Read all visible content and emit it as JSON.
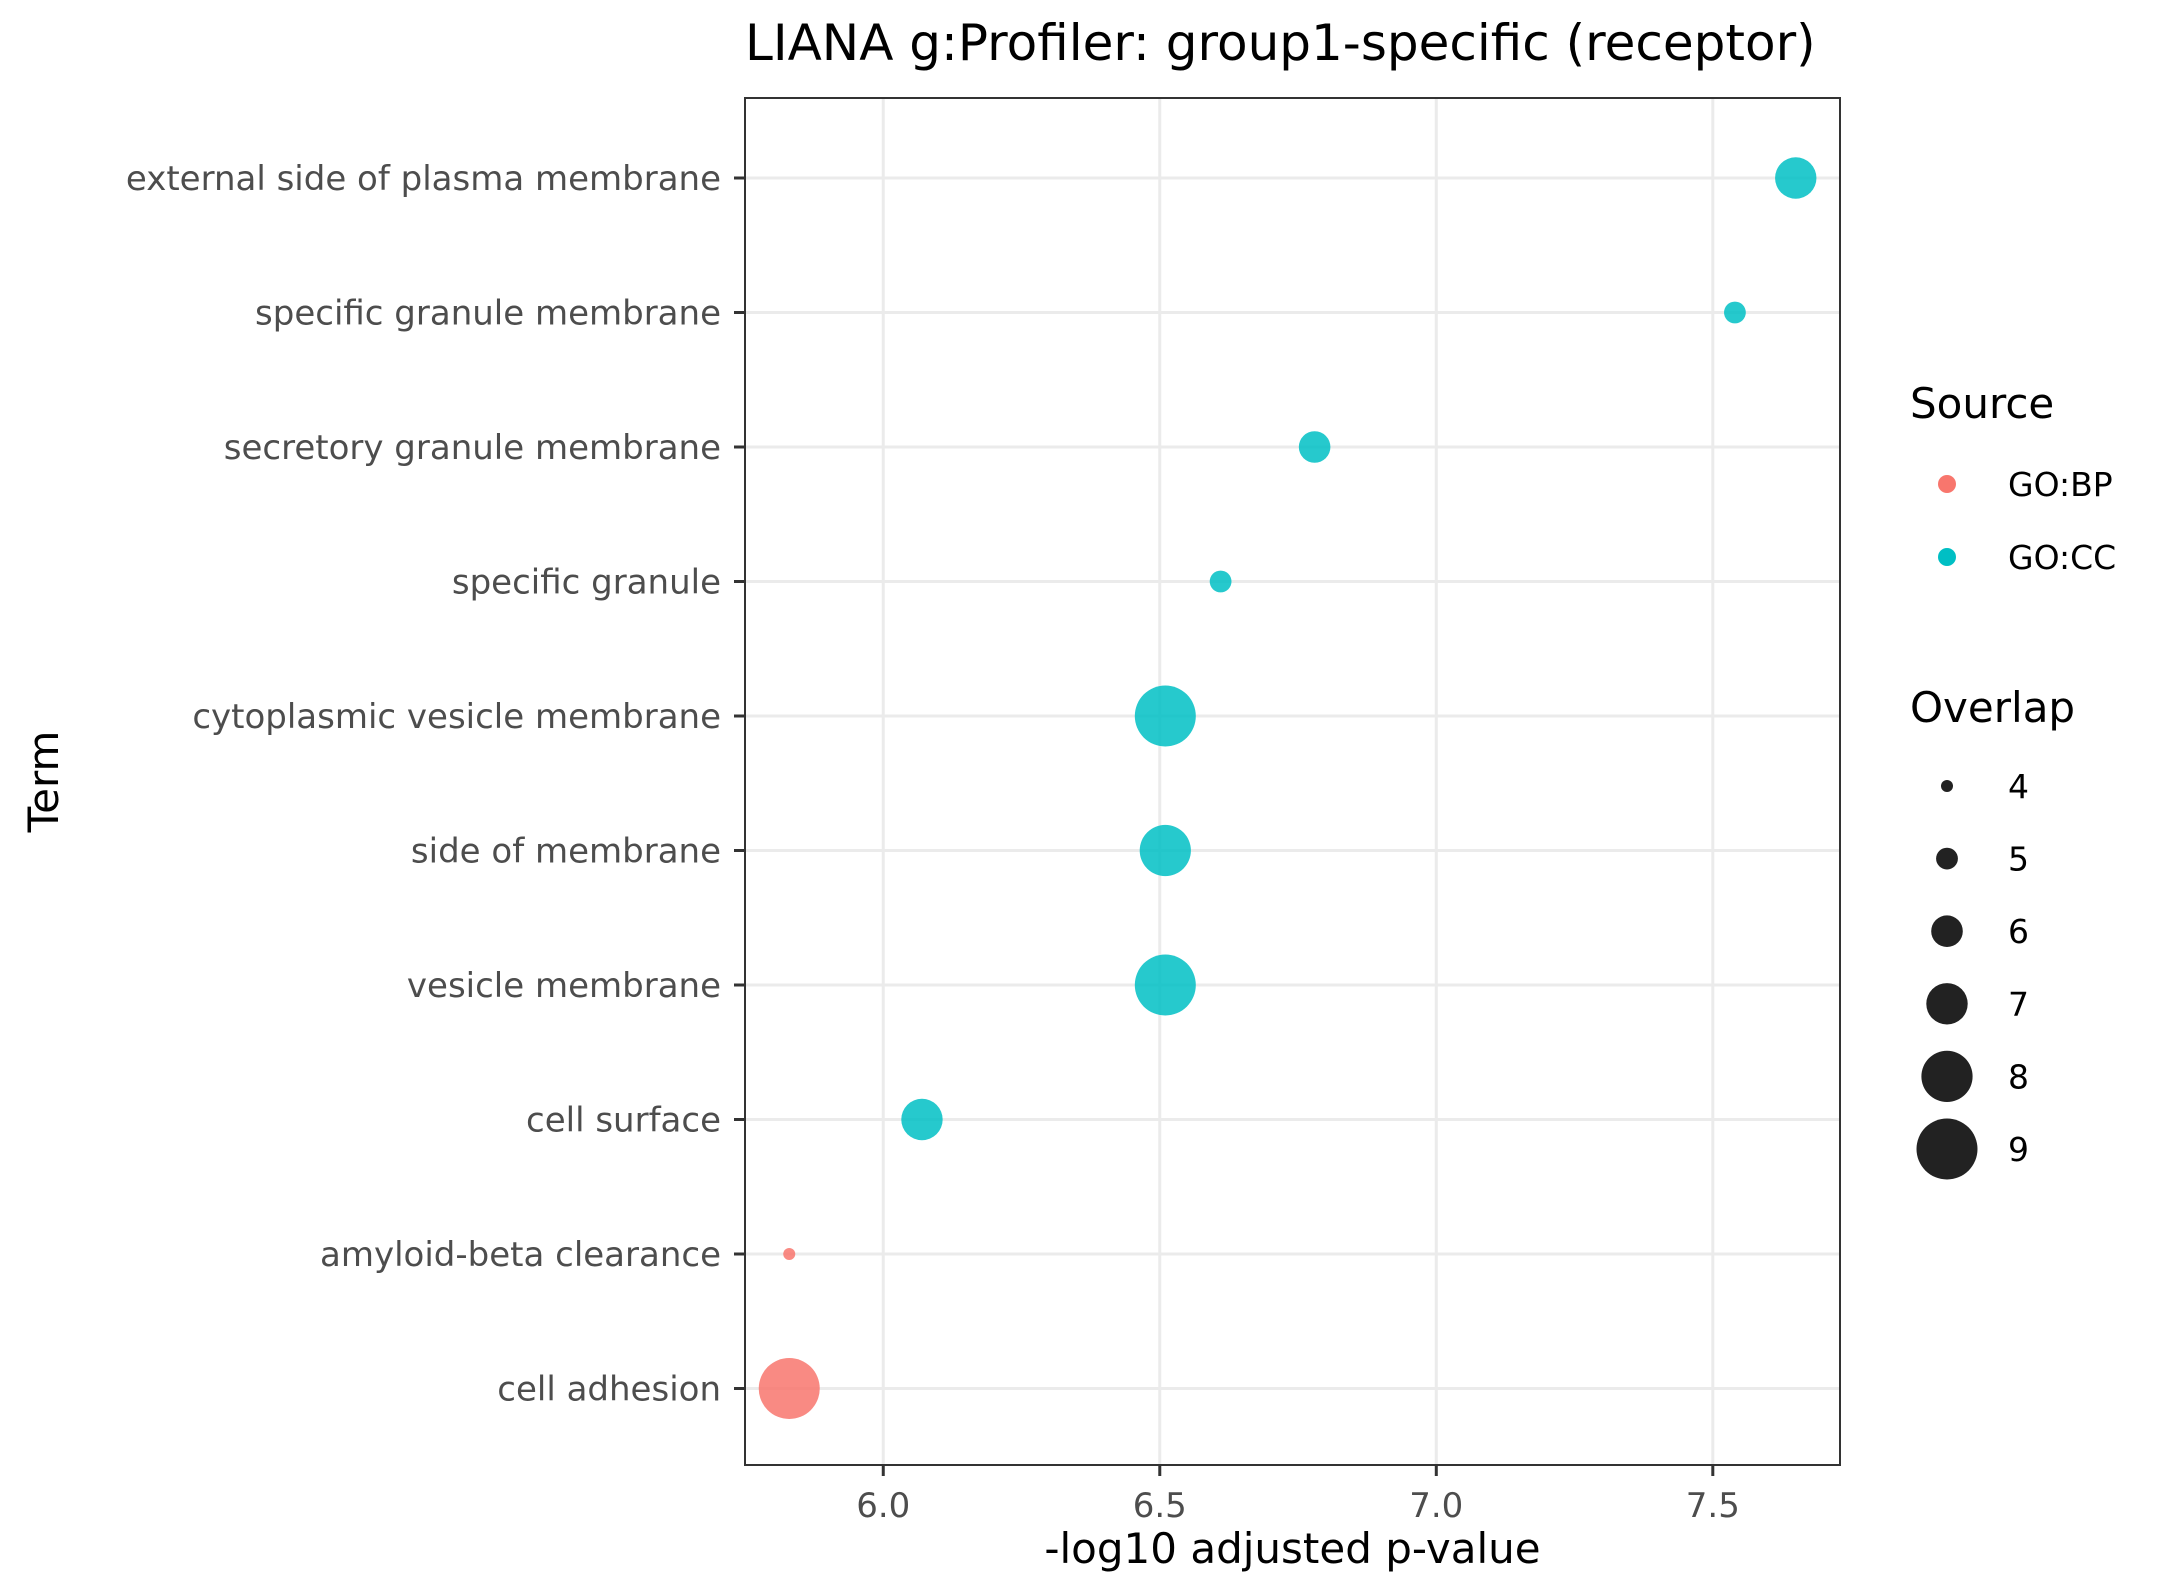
{
  "chart_data": {
    "type": "scatter",
    "title": "LIANA g:Profiler: group1-specific (receptor)",
    "xlabel": "-log10 adjusted p-value",
    "ylabel": "Term",
    "xlim": [
      5.75,
      7.73
    ],
    "x_ticks": [
      "6.0",
      "6.5",
      "7.0",
      "7.5"
    ],
    "x_tick_values": [
      6.0,
      6.5,
      7.0,
      7.5
    ],
    "grid": true,
    "categories": [
      "external side of plasma membrane",
      "specific granule membrane",
      "secretory granule membrane",
      "specific granule",
      "cytoplasmic vesicle membrane",
      "side of membrane",
      "vesicle membrane",
      "cell surface",
      "amyloid-beta clearance",
      "cell adhesion"
    ],
    "points": [
      {
        "term": "external side of plasma membrane",
        "x": 7.65,
        "overlap": 7,
        "source": "GO:CC"
      },
      {
        "term": "specific granule membrane",
        "x": 7.54,
        "overlap": 5,
        "source": "GO:CC"
      },
      {
        "term": "secretory granule membrane",
        "x": 6.78,
        "overlap": 6,
        "source": "GO:CC"
      },
      {
        "term": "specific granule",
        "x": 6.61,
        "overlap": 5,
        "source": "GO:CC"
      },
      {
        "term": "cytoplasmic vesicle membrane",
        "x": 6.51,
        "overlap": 9,
        "source": "GO:CC"
      },
      {
        "term": "side of membrane",
        "x": 6.51,
        "overlap": 8,
        "source": "GO:CC"
      },
      {
        "term": "vesicle membrane",
        "x": 6.51,
        "overlap": 9,
        "source": "GO:CC"
      },
      {
        "term": "cell surface",
        "x": 6.07,
        "overlap": 7,
        "source": "GO:CC"
      },
      {
        "term": "amyloid-beta clearance",
        "x": 5.83,
        "overlap": 4,
        "source": "GO:BP"
      },
      {
        "term": "cell adhesion",
        "x": 5.83,
        "overlap": 9,
        "source": "GO:BP"
      }
    ],
    "legend": {
      "placement": "right",
      "color": {
        "title": "Source",
        "items": [
          {
            "label": "GO:BP",
            "color": "#F8766D"
          },
          {
            "label": "GO:CC",
            "color": "#00BFC4"
          }
        ]
      },
      "size": {
        "title": "Overlap",
        "items": [
          {
            "label": "4",
            "value": 4
          },
          {
            "label": "5",
            "value": 5
          },
          {
            "label": "6",
            "value": 6
          },
          {
            "label": "7",
            "value": 7
          },
          {
            "label": "8",
            "value": 8
          },
          {
            "label": "9",
            "value": 9
          }
        ]
      }
    }
  }
}
